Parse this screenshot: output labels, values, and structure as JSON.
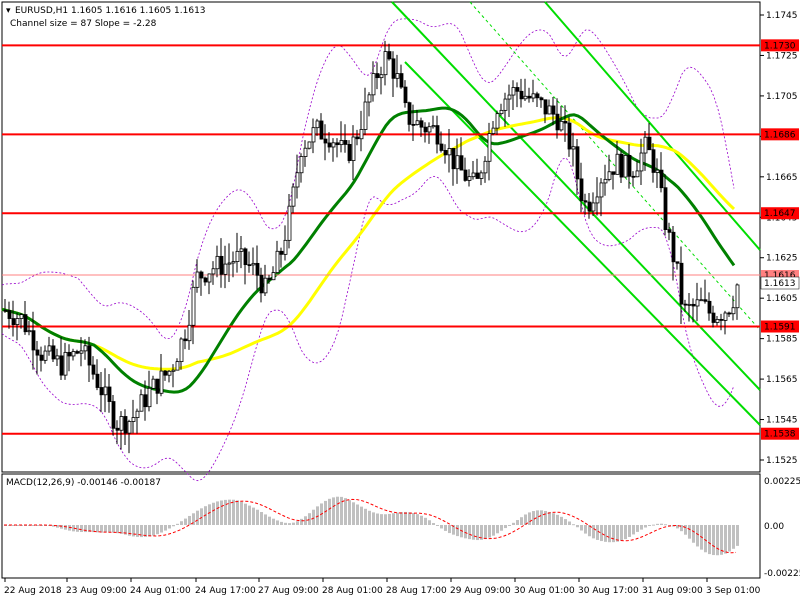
{
  "header": {
    "symbol_line": "EURUSD,H1  1.1605 1.1616 1.1605 1.1613",
    "channel_line": "Channel size = 87 Slope = -2.28"
  },
  "macd": {
    "label": "MACD(12,26,9) -0.00146 -0.00187",
    "ticks": [
      "0.00225",
      "0.00",
      "-0.00225"
    ]
  },
  "price_axis": {
    "ticks": [
      "1.1745",
      "1.1725",
      "1.1705",
      "1.1685",
      "1.1665",
      "1.1645",
      "1.1625",
      "1.1605",
      "1.1585",
      "1.1565",
      "1.1545",
      "1.1525"
    ]
  },
  "time_axis": {
    "ticks": [
      "22 Aug 2018",
      "23 Aug 09:00",
      "24 Aug 01:00",
      "24 Aug 17:00",
      "27 Aug 09:00",
      "28 Aug 01:00",
      "28 Aug 17:00",
      "29 Aug 09:00",
      "30 Aug 01:00",
      "30 Aug 17:00",
      "31 Aug 09:00",
      "3 Sep 01:00"
    ]
  },
  "levels": [
    {
      "price": 1.173,
      "label": "1.1730"
    },
    {
      "price": 1.1686,
      "label": "1.1686"
    },
    {
      "price": 1.1647,
      "label": "1.1647"
    },
    {
      "price": 1.1591,
      "label": "1.1591"
    },
    {
      "price": 1.1538,
      "label": "1.1538"
    }
  ],
  "current_price": {
    "label": "1.1613",
    "hidden_label": "1.1616"
  },
  "colors": {
    "level_line": "#ff0000",
    "level_label_bg": "#ff0000",
    "candle": "#000000",
    "channel": "#00dd00",
    "ma_fast": "#008000",
    "ma_slow": "#ffff00",
    "bollinger": "#9900cc",
    "macd_hist": "#c0c0c0",
    "macd_signal": "#ff0000"
  },
  "chart_data": {
    "type": "candlestick",
    "title": "EURUSD,H1",
    "ylim": [
      1.152,
      1.175
    ],
    "close_path": [
      [
        0,
        1.16
      ],
      [
        20,
        1.1595
      ],
      [
        40,
        1.1578
      ],
      [
        60,
        1.1572
      ],
      [
        80,
        1.158
      ],
      [
        100,
        1.156
      ],
      [
        115,
        1.1543
      ],
      [
        130,
        1.1545
      ],
      [
        150,
        1.156
      ],
      [
        170,
        1.157
      ],
      [
        185,
        1.159
      ],
      [
        195,
        1.1615
      ],
      [
        210,
        1.162
      ],
      [
        225,
        1.1622
      ],
      [
        235,
        1.1625
      ],
      [
        245,
        1.1622
      ],
      [
        255,
        1.1618
      ],
      [
        265,
        1.1608
      ],
      [
        280,
        1.1628
      ],
      [
        290,
        1.165
      ],
      [
        300,
        1.168
      ],
      [
        315,
        1.1688
      ],
      [
        330,
        1.1685
      ],
      [
        345,
        1.1675
      ],
      [
        355,
        1.1685
      ],
      [
        365,
        1.17
      ],
      [
        375,
        1.1715
      ],
      [
        385,
        1.1725
      ],
      [
        395,
        1.1715
      ],
      [
        405,
        1.1695
      ],
      [
        420,
        1.169
      ],
      [
        435,
        1.1688
      ],
      [
        445,
        1.168
      ],
      [
        455,
        1.167
      ],
      [
        465,
        1.1665
      ],
      [
        475,
        1.166
      ],
      [
        485,
        1.168
      ],
      [
        495,
        1.17
      ],
      [
        505,
        1.1705
      ],
      [
        515,
        1.1708
      ],
      [
        525,
        1.1705
      ],
      [
        540,
        1.17
      ],
      [
        555,
        1.1695
      ],
      [
        570,
        1.168
      ],
      [
        578,
        1.166
      ],
      [
        585,
        1.165
      ],
      [
        600,
        1.1665
      ],
      [
        615,
        1.1672
      ],
      [
        630,
        1.1668
      ],
      [
        645,
        1.168
      ],
      [
        655,
        1.1668
      ],
      [
        665,
        1.164
      ],
      [
        675,
        1.162
      ],
      [
        682,
        1.1598
      ],
      [
        690,
        1.16
      ],
      [
        700,
        1.1602
      ],
      [
        710,
        1.1597
      ],
      [
        720,
        1.1598
      ],
      [
        730,
        1.1602
      ],
      [
        737,
        1.1613
      ]
    ]
  }
}
